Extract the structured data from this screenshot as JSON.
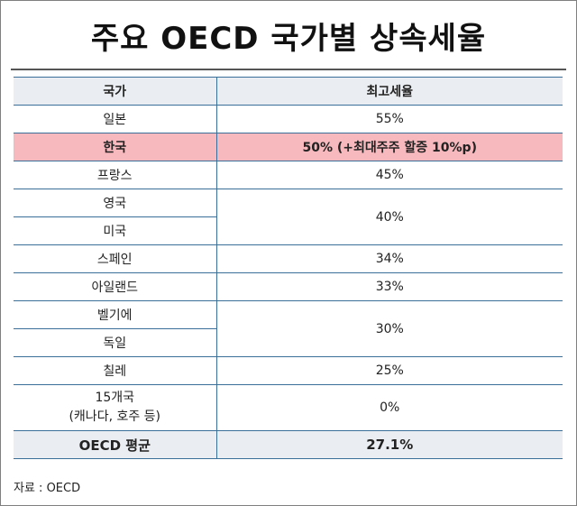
{
  "title": "주요 OECD 국가별 상속세율",
  "table": {
    "headers": {
      "country": "국가",
      "rate": "최고세율"
    },
    "rows": [
      {
        "country": "일본",
        "rate": "55%"
      },
      {
        "country": "한국",
        "rate": "50% (+최대주주 할증 10%p)"
      },
      {
        "country": "프랑스",
        "rate": "45%"
      },
      {
        "country": "영국",
        "rate": "40%"
      },
      {
        "country": "미국"
      },
      {
        "country": "스페인",
        "rate": "34%"
      },
      {
        "country": "아일랜드",
        "rate": "33%"
      },
      {
        "country": "벨기에",
        "rate": "30%"
      },
      {
        "country": "독일"
      },
      {
        "country": "칠레",
        "rate": "25%"
      },
      {
        "country_line1": "15개국",
        "country_line2": "(캐나다, 호주 등)",
        "rate": "0%"
      }
    ],
    "footer": {
      "country": "OECD 평균",
      "rate": "27.1%"
    }
  },
  "source": "자료 : OECD",
  "colors": {
    "border": "#3a6f9a",
    "header_bg": "#eaedf1",
    "highlight_bg": "#f8b9be"
  }
}
